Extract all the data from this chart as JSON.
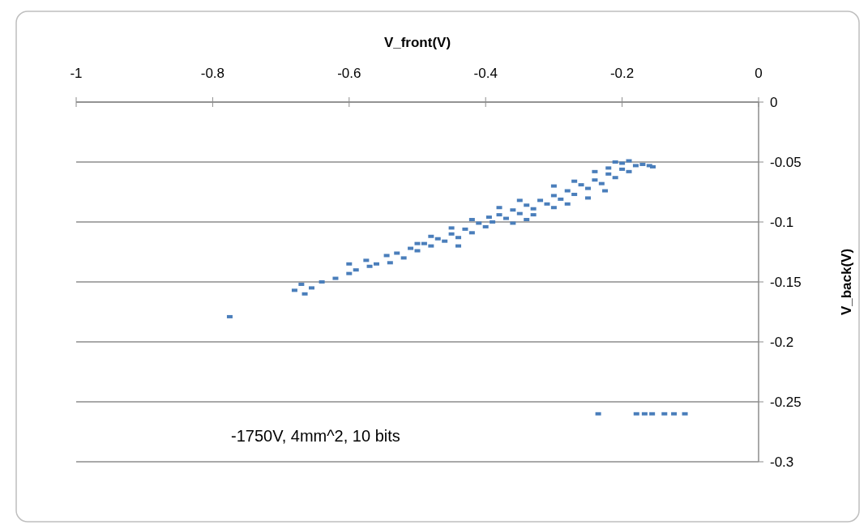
{
  "chart_data": {
    "type": "scatter",
    "xlabel": "V_front(V)",
    "ylabel": "V_back(V)",
    "annotations": [
      "-1750V, 4mm^2, 10 bits"
    ],
    "xlim": [
      -1,
      0
    ],
    "xticks": [
      -1,
      -0.8,
      -0.6,
      -0.4,
      -0.2,
      0
    ],
    "ylim": [
      -0.3,
      0
    ],
    "yticks": [
      0,
      -0.05,
      -0.1,
      -0.15,
      -0.2,
      -0.25,
      -0.3
    ],
    "grid": "y",
    "marker": "square",
    "series": [
      {
        "color": "#4a7ebb",
        "x": [
          -0.775,
          -0.68,
          -0.67,
          -0.665,
          -0.655,
          -0.64,
          -0.62,
          -0.6,
          -0.59,
          -0.575,
          -0.57,
          -0.56,
          -0.545,
          -0.54,
          -0.53,
          -0.52,
          -0.51,
          -0.5,
          -0.49,
          -0.48,
          -0.47,
          -0.46,
          -0.45,
          -0.44,
          -0.43,
          -0.42,
          -0.41,
          -0.4,
          -0.395,
          -0.39,
          -0.38,
          -0.37,
          -0.36,
          -0.35,
          -0.34,
          -0.33,
          -0.32,
          -0.31,
          -0.3,
          -0.29,
          -0.28,
          -0.27,
          -0.26,
          -0.25,
          -0.24,
          -0.23,
          -0.22,
          -0.21,
          -0.2,
          -0.19,
          -0.18,
          -0.17,
          -0.16,
          -0.155,
          -0.24,
          -0.22,
          -0.2,
          -0.21,
          -0.19,
          -0.3,
          -0.27,
          -0.35,
          -0.38,
          -0.33,
          -0.28,
          -0.225,
          -0.25,
          -0.3,
          -0.42,
          -0.45,
          -0.48,
          -0.44,
          -0.6,
          -0.5,
          -0.36,
          -0.34,
          -0.235,
          -0.179,
          -0.167,
          -0.156,
          -0.138,
          -0.124,
          -0.108
        ],
        "values": [
          -0.179,
          -0.157,
          -0.152,
          -0.16,
          -0.155,
          -0.15,
          -0.147,
          -0.143,
          -0.14,
          -0.132,
          -0.137,
          -0.135,
          -0.128,
          -0.134,
          -0.126,
          -0.13,
          -0.122,
          -0.124,
          -0.118,
          -0.12,
          -0.114,
          -0.116,
          -0.11,
          -0.113,
          -0.106,
          -0.109,
          -0.101,
          -0.104,
          -0.096,
          -0.1,
          -0.094,
          -0.097,
          -0.09,
          -0.093,
          -0.086,
          -0.089,
          -0.082,
          -0.085,
          -0.078,
          -0.081,
          -0.074,
          -0.077,
          -0.069,
          -0.072,
          -0.065,
          -0.068,
          -0.06,
          -0.063,
          -0.056,
          -0.058,
          -0.053,
          -0.052,
          -0.053,
          -0.054,
          -0.058,
          -0.055,
          -0.051,
          -0.05,
          -0.049,
          -0.07,
          -0.066,
          -0.082,
          -0.088,
          -0.094,
          -0.085,
          -0.074,
          -0.08,
          -0.088,
          -0.098,
          -0.105,
          -0.112,
          -0.12,
          -0.135,
          -0.118,
          -0.101,
          -0.098,
          -0.26,
          -0.26,
          -0.26,
          -0.26,
          -0.26,
          -0.26,
          -0.26
        ]
      }
    ]
  }
}
